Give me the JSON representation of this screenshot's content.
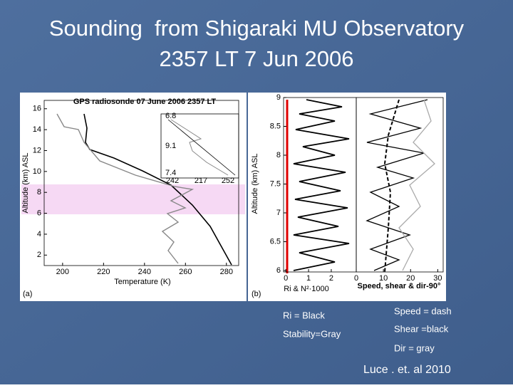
{
  "slide": {
    "title": [
      "Sounding  from Shigaraki MU Observatory",
      "2357 LT 7 Jun 2006"
    ],
    "panel_a": {
      "title": "GPS radiosonde 07 June 2006 2357 LT",
      "ylabel": "Altitude (km) ASL",
      "xlabel": "Temperature (K)",
      "tag": "(a)",
      "xlim": [
        191,
        286
      ],
      "ylim": [
        1,
        16.8
      ],
      "xticks": [
        200,
        220,
        240,
        260,
        280
      ],
      "yticks": [
        2,
        4,
        6,
        8,
        10,
        12,
        14,
        16
      ],
      "inset_labels": [
        6.8,
        9.1,
        7.4,
        242,
        217,
        252
      ]
    },
    "panel_b": {
      "ylabel": "Altitude (km) ASL",
      "tag": "(b)",
      "ylim": [
        6,
        9
      ],
      "yticks": [
        6,
        6.5,
        7,
        7.5,
        8,
        8.5,
        9
      ],
      "left": {
        "xlabel": "Ri & N²·1000",
        "xlim": [
          -0.1,
          3.1
        ],
        "xticks": [
          0,
          1,
          2
        ]
      },
      "right": {
        "xlabel": "Speed, shear & dir-90°",
        "xlim": [
          0,
          32
        ],
        "xticks": [
          0,
          10,
          20,
          30
        ]
      }
    },
    "notes": [
      "Ri = Black",
      "Stability=Gray",
      "Speed = dash",
      "Shear =black",
      "Dir = gray"
    ],
    "credit": "Luce . et. al 2010"
  }
}
